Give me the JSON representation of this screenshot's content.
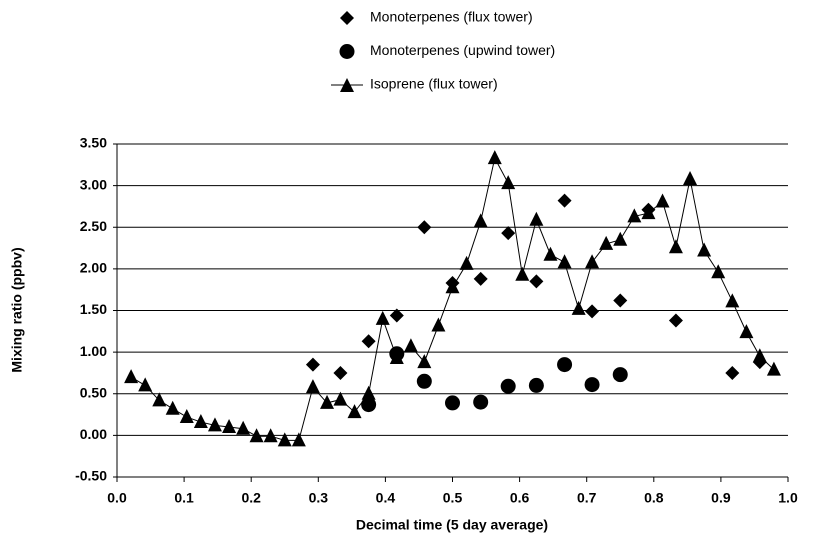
{
  "chart_data": {
    "type": "scatter",
    "x_label": "Decimal time (5 day average)",
    "y_label": "Mixing ratio (ppbv)",
    "xlim": [
      0,
      1
    ],
    "ylim": [
      -0.5,
      3.5
    ],
    "xticks": [
      {
        "value": 0,
        "label": "0.0"
      },
      {
        "value": 0.1,
        "label": "0.1"
      },
      {
        "value": 0.2,
        "label": "0.2"
      },
      {
        "value": 0.3,
        "label": "0.3"
      },
      {
        "value": 0.4,
        "label": "0.4"
      },
      {
        "value": 0.5,
        "label": "0.5"
      },
      {
        "value": 0.6,
        "label": "0.6"
      },
      {
        "value": 0.7,
        "label": "0.7"
      },
      {
        "value": 0.8,
        "label": "0.8"
      },
      {
        "value": 0.9,
        "label": "0.9"
      },
      {
        "value": 1,
        "label": "1.0"
      }
    ],
    "yticks": [
      {
        "value": -0.5,
        "label": "-0.50"
      },
      {
        "value": 0,
        "label": "0.00"
      },
      {
        "value": 0.5,
        "label": "0.50"
      },
      {
        "value": 1,
        "label": "1.00"
      },
      {
        "value": 1.5,
        "label": "1.50"
      },
      {
        "value": 2,
        "label": "2.00"
      },
      {
        "value": 2.5,
        "label": "2.50"
      },
      {
        "value": 3,
        "label": "3.00"
      },
      {
        "value": 3.5,
        "label": "3.50"
      }
    ],
    "grid": true,
    "legend": "top",
    "series": [
      {
        "name": "Monoterpenes (flux tower)",
        "color": "#000000",
        "marker": "diamond",
        "line": false,
        "x": [
          0.292,
          0.333,
          0.375,
          0.417,
          0.458,
          0.5,
          0.542,
          0.583,
          0.625,
          0.667,
          0.708,
          0.75,
          0.792,
          0.833,
          0.917,
          0.958
        ],
        "values": [
          0.85,
          0.75,
          1.13,
          1.44,
          2.5,
          1.83,
          1.88,
          2.43,
          1.85,
          2.82,
          1.49,
          1.62,
          2.71,
          1.38,
          0.75,
          0.88
        ]
      },
      {
        "name": "Monoterpenes (upwind tower)",
        "color": "#000000",
        "marker": "circle",
        "line": false,
        "x": [
          0.375,
          0.417,
          0.458,
          0.5,
          0.542,
          0.583,
          0.625,
          0.667,
          0.708,
          0.75
        ],
        "values": [
          0.37,
          0.98,
          0.65,
          0.39,
          0.4,
          0.59,
          0.6,
          0.85,
          0.61,
          0.73
        ]
      },
      {
        "name": "Isoprene (flux tower)",
        "color": "#000000",
        "marker": "triangle",
        "line": true,
        "x": [
          0.021,
          0.042,
          0.063,
          0.083,
          0.104,
          0.125,
          0.146,
          0.167,
          0.188,
          0.208,
          0.229,
          0.25,
          0.271,
          0.292,
          0.313,
          0.333,
          0.354,
          0.375,
          0.396,
          0.417,
          0.438,
          0.458,
          0.479,
          0.5,
          0.521,
          0.542,
          0.563,
          0.583,
          0.604,
          0.625,
          0.646,
          0.667,
          0.688,
          0.708,
          0.729,
          0.75,
          0.771,
          0.792,
          0.813,
          0.833,
          0.854,
          0.875,
          0.896,
          0.917,
          0.938,
          0.958,
          0.979
        ],
        "values": [
          0.7,
          0.6,
          0.42,
          0.32,
          0.22,
          0.16,
          0.12,
          0.1,
          0.08,
          -0.01,
          -0.01,
          -0.06,
          -0.06,
          0.58,
          0.39,
          0.43,
          0.28,
          0.5,
          1.4,
          0.93,
          1.07,
          0.88,
          1.32,
          1.78,
          2.06,
          2.57,
          3.33,
          3.03,
          1.93,
          2.59,
          2.17,
          2.08,
          1.52,
          2.08,
          2.3,
          2.35,
          2.63,
          2.67,
          2.81,
          2.26,
          3.08,
          2.22,
          1.96,
          1.61,
          1.24,
          0.95,
          0.79
        ]
      }
    ]
  }
}
